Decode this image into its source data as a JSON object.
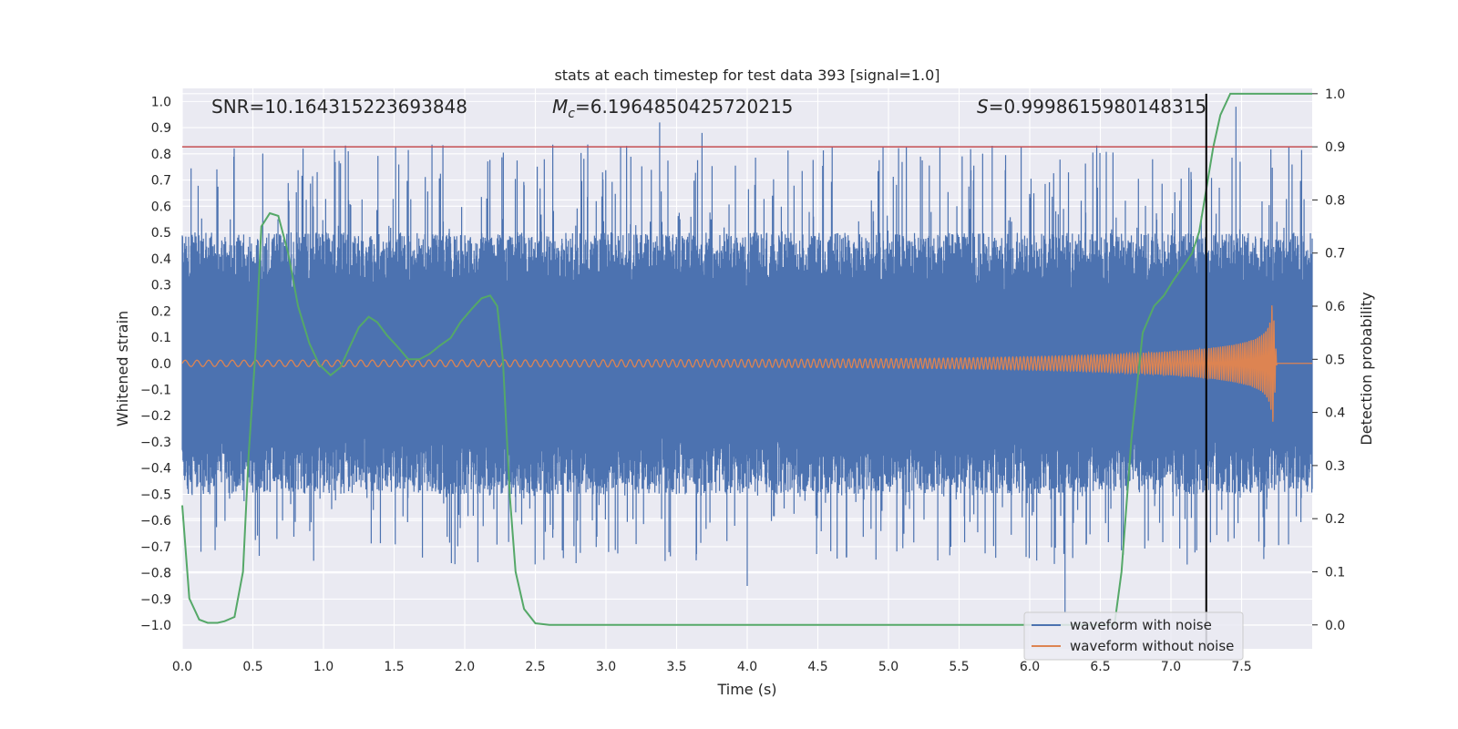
{
  "chart_data": {
    "type": "line",
    "title": "stats at each timestep for test data 393 [signal=1.0]",
    "xlabel": "Time (s)",
    "ylabel": "Whitened strain",
    "y2label": "Detection probability",
    "xlim": [
      0.0,
      8.0
    ],
    "ylim": [
      -1.09,
      1.05
    ],
    "y2lim": [
      -0.045,
      1.01
    ],
    "xticks": [
      0.0,
      0.5,
      1.0,
      1.5,
      2.0,
      2.5,
      3.0,
      3.5,
      4.0,
      4.5,
      5.0,
      5.5,
      6.0,
      6.5,
      7.0,
      7.5
    ],
    "xtick_labels": [
      "0.0",
      "0.5",
      "1.0",
      "1.5",
      "2.0",
      "2.5",
      "3.0",
      "3.5",
      "4.0",
      "4.5",
      "5.0",
      "5.5",
      "6.0",
      "6.5",
      "7.0",
      "7.5"
    ],
    "yticks": [
      1.0,
      0.9,
      0.8,
      0.7,
      0.6,
      0.5,
      0.4,
      0.3,
      0.2,
      0.1,
      0.0,
      -0.1,
      -0.2,
      -0.3,
      -0.4,
      -0.5,
      -0.6,
      -0.7,
      -0.8,
      -0.9,
      -1.0
    ],
    "ytick_labels": [
      "1.0",
      "0.9",
      "0.8",
      "0.7",
      "0.6",
      "0.5",
      "0.4",
      "0.3",
      "0.2",
      "0.1",
      "0.0",
      "−0.1",
      "−0.2",
      "−0.3",
      "−0.4",
      "−0.5",
      "−0.6",
      "−0.7",
      "−0.8",
      "−0.9",
      "−1.0"
    ],
    "y2ticks": [
      1.0,
      0.9,
      0.8,
      0.7,
      0.6,
      0.5,
      0.4,
      0.3,
      0.2,
      0.1,
      0.0
    ],
    "y2tick_labels": [
      "1.0",
      "0.9",
      "0.8",
      "0.7",
      "0.6",
      "0.5",
      "0.4",
      "0.3",
      "0.2",
      "0.1",
      "0.0"
    ],
    "annotations": {
      "snr": "SNR=10.164315223693848",
      "mc_symbol": "M",
      "mc_sub": "c",
      "mc_value": "=6.1964850425720215",
      "s_symbol": "S",
      "s_value": "=0.9998615980148315"
    },
    "threshold_prob": 0.9,
    "event_time": 7.25,
    "series": [
      {
        "name": "waveform with noise",
        "color": "#4c72b0",
        "envelope": {
          "t_range": [
            0.0,
            8.0
          ],
          "band_upper": 0.5,
          "band_lower": -0.5,
          "max_peak": 0.92,
          "min_peak": -0.95
        }
      },
      {
        "name": "waveform without noise",
        "color": "#dd8452",
        "chirp": {
          "start_amplitude": 0.012,
          "merger_time": 7.72,
          "peak_amplitude": 0.24,
          "ringdown_end": 7.75,
          "start_cycles_per_s": 12,
          "end_cycles_per_s": 70
        }
      },
      {
        "name": "Detection probability",
        "color": "#55a868",
        "axis": "right",
        "x": [
          0.0,
          0.05,
          0.12,
          0.18,
          0.25,
          0.3,
          0.37,
          0.43,
          0.47,
          0.52,
          0.56,
          0.62,
          0.68,
          0.75,
          0.82,
          0.9,
          0.97,
          1.05,
          1.12,
          1.18,
          1.25,
          1.32,
          1.38,
          1.45,
          1.52,
          1.6,
          1.68,
          1.75,
          1.82,
          1.9,
          1.97,
          2.05,
          2.12,
          2.18,
          2.23,
          2.27,
          2.32,
          2.36,
          2.42,
          2.5,
          2.6,
          3.0,
          4.0,
          5.0,
          6.0,
          6.5,
          6.6,
          6.65,
          6.72,
          6.8,
          6.88,
          6.95,
          7.02,
          7.1,
          7.15,
          7.2,
          7.25,
          7.3,
          7.35,
          7.42,
          7.5,
          7.6,
          8.0
        ],
        "values": [
          0.225,
          0.05,
          0.01,
          0.004,
          0.004,
          0.007,
          0.015,
          0.1,
          0.32,
          0.52,
          0.75,
          0.775,
          0.77,
          0.7,
          0.6,
          0.53,
          0.49,
          0.47,
          0.485,
          0.52,
          0.56,
          0.58,
          0.57,
          0.545,
          0.525,
          0.5,
          0.5,
          0.51,
          0.525,
          0.54,
          0.57,
          0.595,
          0.615,
          0.62,
          0.6,
          0.5,
          0.24,
          0.1,
          0.03,
          0.003,
          0.0,
          0.0,
          0.0,
          0.0,
          0.0,
          0.0,
          0.0,
          0.1,
          0.35,
          0.55,
          0.6,
          0.62,
          0.65,
          0.68,
          0.7,
          0.74,
          0.82,
          0.9,
          0.96,
          1.0,
          1.0,
          1.0,
          1.0
        ]
      }
    ],
    "legend": {
      "position": "lower-right",
      "labels": [
        "waveform with noise",
        "waveform without noise"
      ]
    },
    "colors": {
      "plot_background": "#eaeaf2",
      "grid": "#ffffff",
      "threshold_line": "#c44e52",
      "event_line": "#000000"
    }
  }
}
